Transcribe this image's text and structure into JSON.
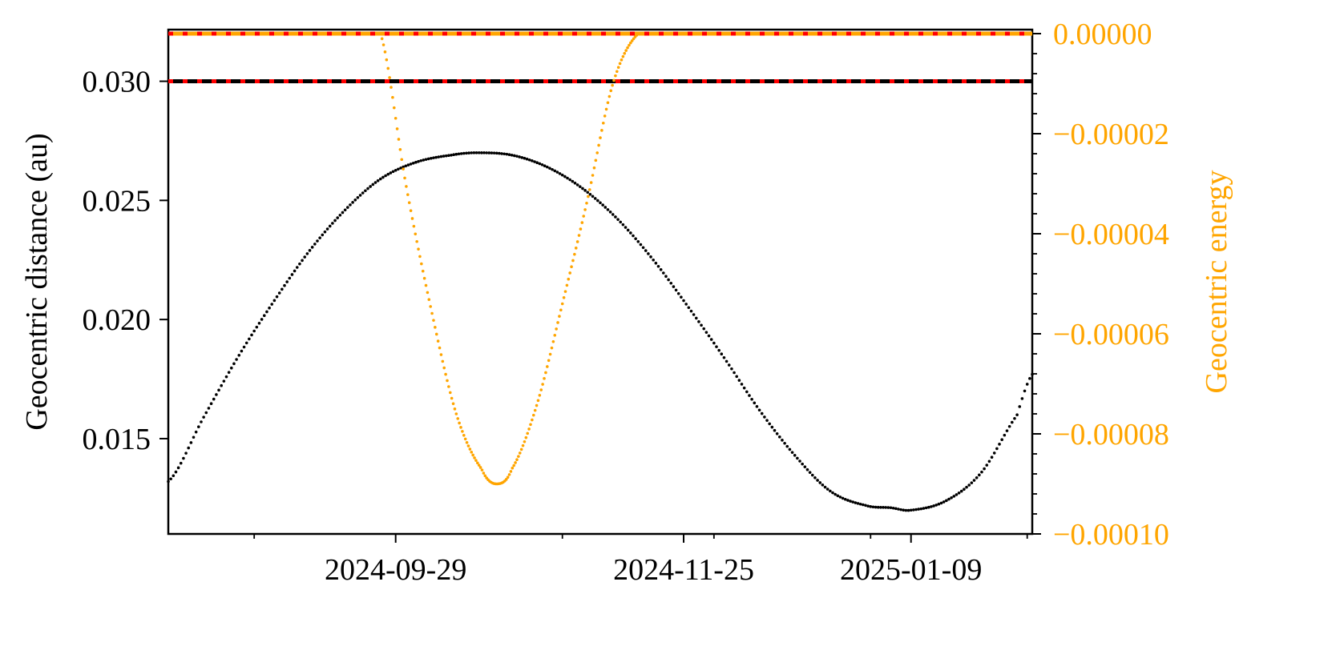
{
  "chart_data": {
    "type": "scatter",
    "grid": false,
    "x_axis": {
      "type": "date",
      "range": [
        "2024-08-15",
        "2025-02-02"
      ],
      "major_tick_labels": [
        "2024-09-29",
        "2024-11-25",
        "2025-01-09"
      ],
      "minor_ticks": [
        "2024-09-01",
        "2024-11-01",
        "2024-12-01",
        "2025-01-01",
        "2025-02-01"
      ]
    },
    "y_left": {
      "label": "Geocentric distance (au)",
      "range": [
        0.011,
        0.032
      ],
      "tick_labels": [
        "0.015",
        "0.020",
        "0.025",
        "0.030"
      ],
      "ticks": [
        0.015,
        0.02,
        0.025,
        0.03
      ],
      "color": "#000000"
    },
    "y_right": {
      "label": "Geocentric energy",
      "range": [
        -0.0001,
        0.0
      ],
      "tick_labels": [
        "0.00000",
        "−0.00002",
        "−0.00004",
        "−0.00006",
        "−0.00008",
        "−0.00010"
      ],
      "ticks": [
        0.0,
        -2e-05,
        -4e-05,
        -6e-05,
        -8e-05,
        -0.0001
      ],
      "color": "#FFA500"
    },
    "series": [
      {
        "axis": "left",
        "color": "#000000",
        "marker": "dot",
        "points": [
          [
            "2024-08-15",
            0.0132
          ],
          [
            "2024-08-22",
            0.0159
          ],
          [
            "2024-08-29",
            0.0185
          ],
          [
            "2024-09-05",
            0.0208
          ],
          [
            "2024-09-12",
            0.0229
          ],
          [
            "2024-09-19",
            0.0246
          ],
          [
            "2024-09-26",
            0.0259
          ],
          [
            "2024-10-03",
            0.0266
          ],
          [
            "2024-10-10",
            0.0269
          ],
          [
            "2024-10-15",
            0.027
          ],
          [
            "2024-10-22",
            0.0269
          ],
          [
            "2024-10-29",
            0.0264
          ],
          [
            "2024-11-05",
            0.0255
          ],
          [
            "2024-11-12",
            0.0242
          ],
          [
            "2024-11-19",
            0.0225
          ],
          [
            "2024-11-26",
            0.0205
          ],
          [
            "2024-12-03",
            0.0184
          ],
          [
            "2024-12-10",
            0.0162
          ],
          [
            "2024-12-17",
            0.0143
          ],
          [
            "2024-12-24",
            0.0128
          ],
          [
            "2024-12-31",
            0.0122
          ],
          [
            "2025-01-05",
            0.0121
          ],
          [
            "2025-01-09",
            0.012
          ],
          [
            "2025-01-16",
            0.0124
          ],
          [
            "2025-01-23",
            0.0136
          ],
          [
            "2025-01-30",
            0.016
          ],
          [
            "2025-02-02",
            0.0177
          ]
        ]
      },
      {
        "axis": "right",
        "color": "#FFA500",
        "marker": "dot",
        "points": [
          [
            "2024-09-26",
            0.0
          ],
          [
            "2024-10-01",
            -3e-05
          ],
          [
            "2024-10-06",
            -5.5e-05
          ],
          [
            "2024-10-11",
            -7.6e-05
          ],
          [
            "2024-10-16",
            -8.7e-05
          ],
          [
            "2024-10-19",
            -9e-05
          ],
          [
            "2024-10-22",
            -8.7e-05
          ],
          [
            "2024-10-27",
            -7.4e-05
          ],
          [
            "2024-11-01",
            -5.4e-05
          ],
          [
            "2024-11-06",
            -3.3e-05
          ],
          [
            "2024-11-11",
            -1e-05
          ],
          [
            "2024-11-16",
            0.0
          ]
        ]
      }
    ],
    "reference_lines": [
      {
        "axis": "left",
        "value": 0.03,
        "color": "#000000",
        "overlay_color": "#FF0000"
      },
      {
        "axis": "right",
        "value": 0.0,
        "color": "#FFA500",
        "overlay_color": "#FF0000"
      }
    ]
  }
}
